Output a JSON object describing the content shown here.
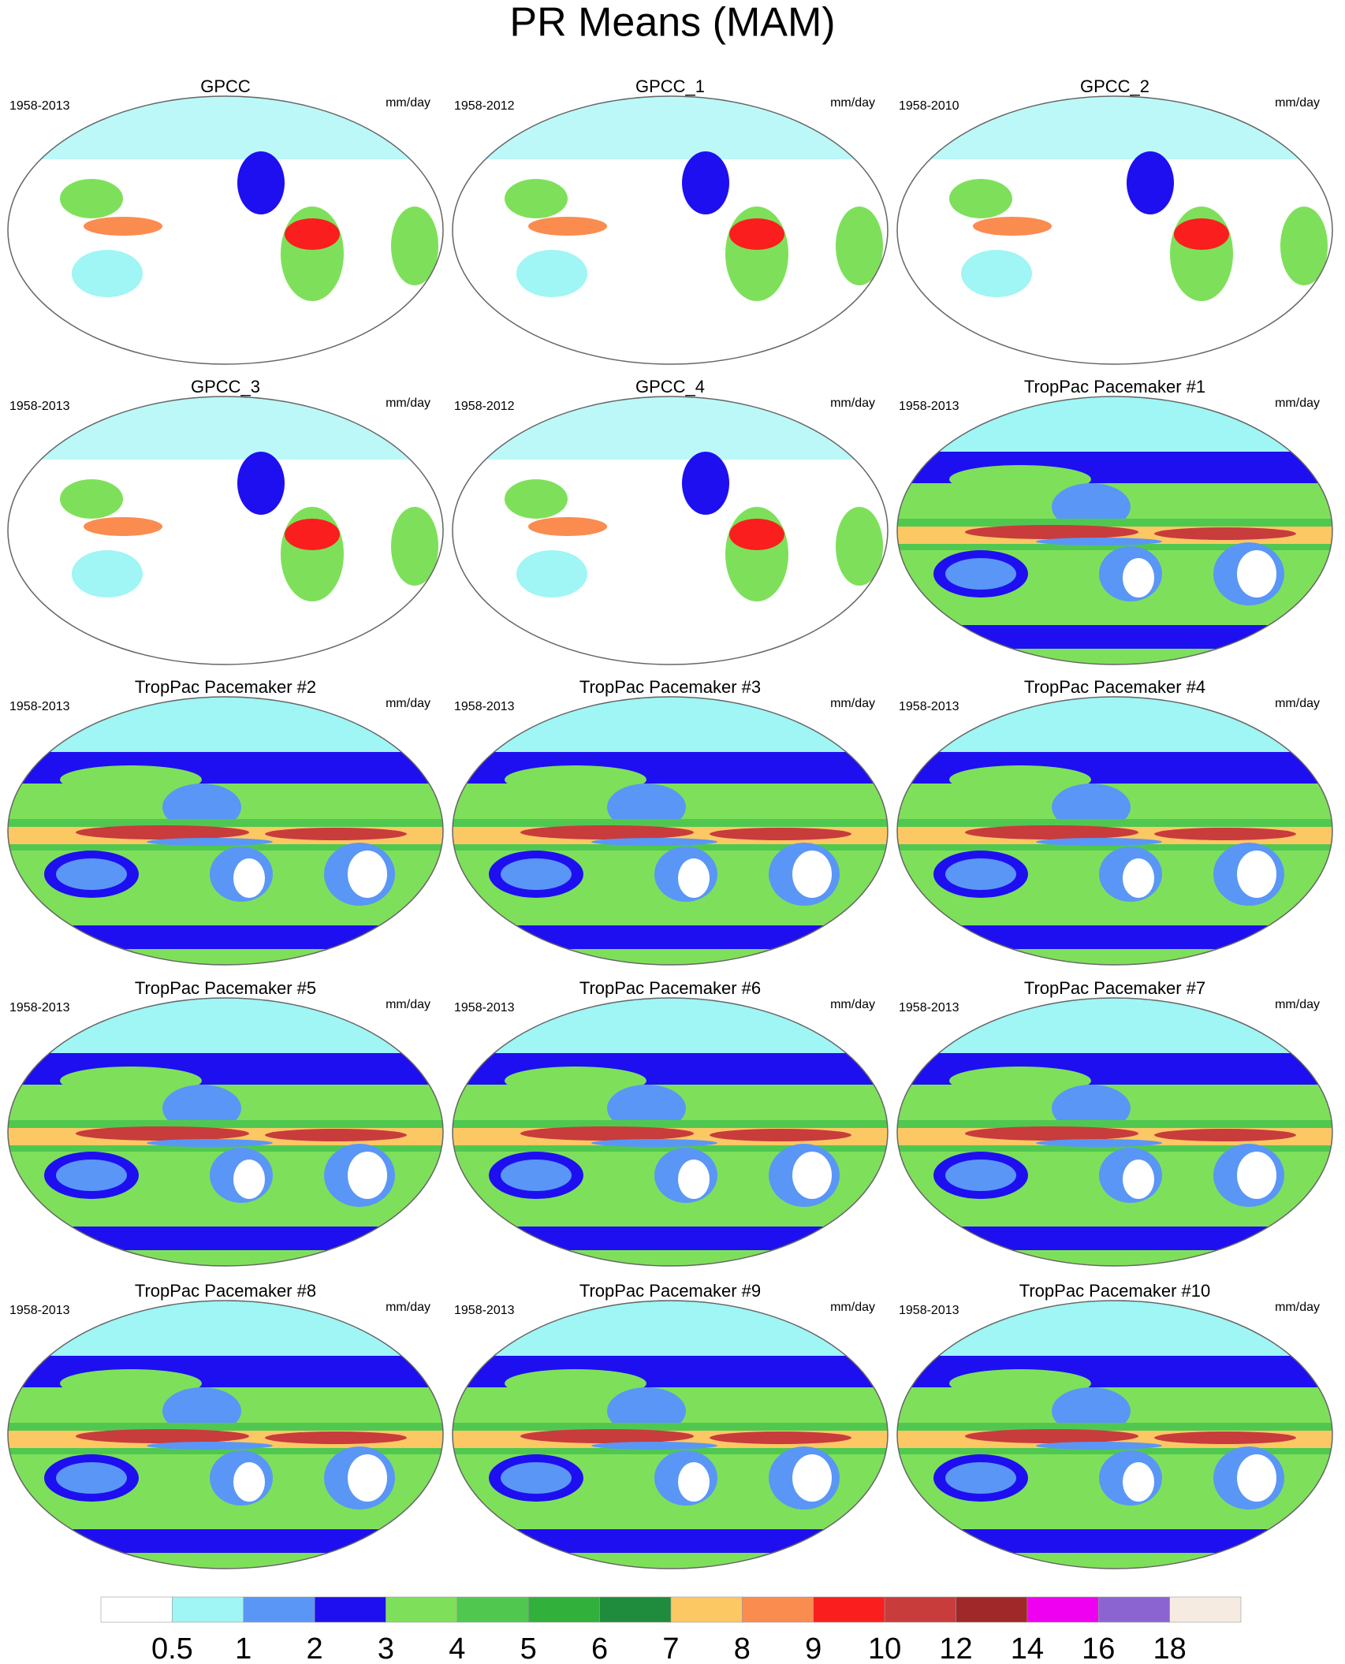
{
  "title": "PR Means (MAM)",
  "panels": [
    {
      "title": "GPCC",
      "period": "1958-2013",
      "units": "mm/day"
    },
    {
      "title": "GPCC_1",
      "period": "1958-2012",
      "units": "mm/day"
    },
    {
      "title": "GPCC_2",
      "period": "1958-2010",
      "units": "mm/day"
    },
    {
      "title": "GPCC_3",
      "period": "1958-2013",
      "units": "mm/day"
    },
    {
      "title": "GPCC_4",
      "period": "1958-2012",
      "units": "mm/day"
    },
    {
      "title": "TropPac Pacemaker #1",
      "period": "1958-2013",
      "units": "mm/day"
    },
    {
      "title": "TropPac Pacemaker #2",
      "period": "1958-2013",
      "units": "mm/day"
    },
    {
      "title": "TropPac Pacemaker #3",
      "period": "1958-2013",
      "units": "mm/day"
    },
    {
      "title": "TropPac Pacemaker #4",
      "period": "1958-2013",
      "units": "mm/day"
    },
    {
      "title": "TropPac Pacemaker #5",
      "period": "1958-2013",
      "units": "mm/day"
    },
    {
      "title": "TropPac Pacemaker #6",
      "period": "1958-2013",
      "units": "mm/day"
    },
    {
      "title": "TropPac Pacemaker #7",
      "period": "1958-2013",
      "units": "mm/day"
    },
    {
      "title": "TropPac Pacemaker #8",
      "period": "1958-2013",
      "units": "mm/day"
    },
    {
      "title": "TropPac Pacemaker #9",
      "period": "1958-2013",
      "units": "mm/day"
    },
    {
      "title": "TropPac Pacemaker #10",
      "period": "1958-2013",
      "units": "mm/day"
    }
  ],
  "colorbar": {
    "levels": [
      0.5,
      1,
      2,
      3,
      4,
      5,
      6,
      7,
      8,
      9,
      10,
      12,
      14,
      16,
      18
    ],
    "colors": [
      "#ffffff",
      "#a0f5f5",
      "#5a96f5",
      "#1e0ff0",
      "#7ee05a",
      "#50c850",
      "#32b03c",
      "#1e8c3c",
      "#fcc864",
      "#fa8c50",
      "#fa1e1e",
      "#c83c3c",
      "#a02828",
      "#f000f0",
      "#8c64d2",
      "#f5ebe1"
    ]
  }
}
